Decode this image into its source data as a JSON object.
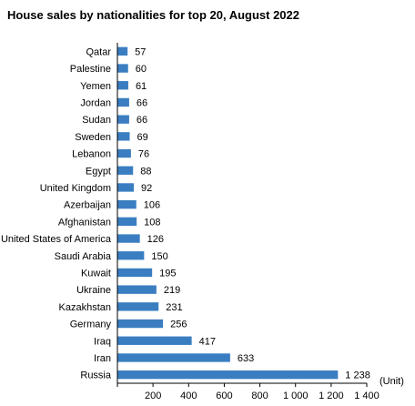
{
  "title": "House sales by nationalities for top 20, August 2022",
  "colors": {
    "bar": "#3A7EC1",
    "axis": "#000000"
  },
  "chart_data": {
    "type": "bar",
    "orientation": "horizontal",
    "title": "House sales by nationalities for top 20, August 2022",
    "unit_label": "(Unit)",
    "categories": [
      "Qatar",
      "Palestine",
      "Yemen",
      "Jordan",
      "Sudan",
      "Sweden",
      "Lebanon",
      "Egypt",
      "United Kingdom",
      "Azerbaijan",
      "Afghanistan",
      "United States of America",
      "Saudi Arabia",
      "Kuwait",
      "Ukraine",
      "Kazakhstan",
      "Germany",
      "Iraq",
      "Iran",
      "Russia"
    ],
    "values": [
      57,
      60,
      61,
      66,
      66,
      69,
      76,
      88,
      92,
      106,
      108,
      126,
      150,
      195,
      219,
      231,
      256,
      417,
      633,
      1238
    ],
    "value_labels": [
      "57",
      "60",
      "61",
      "66",
      "66",
      "69",
      "76",
      "88",
      "92",
      "106",
      "108",
      "126",
      "150",
      "195",
      "219",
      "231",
      "256",
      "417",
      "633",
      "1 238"
    ],
    "xlim": [
      0,
      1400
    ],
    "xticks": [
      200,
      400,
      600,
      800,
      1000,
      1200,
      1400
    ],
    "xtick_labels": [
      "200",
      "400",
      "600",
      "800",
      "1 000",
      "1 200",
      "1 400"
    ],
    "grid": false,
    "legend": "none"
  }
}
